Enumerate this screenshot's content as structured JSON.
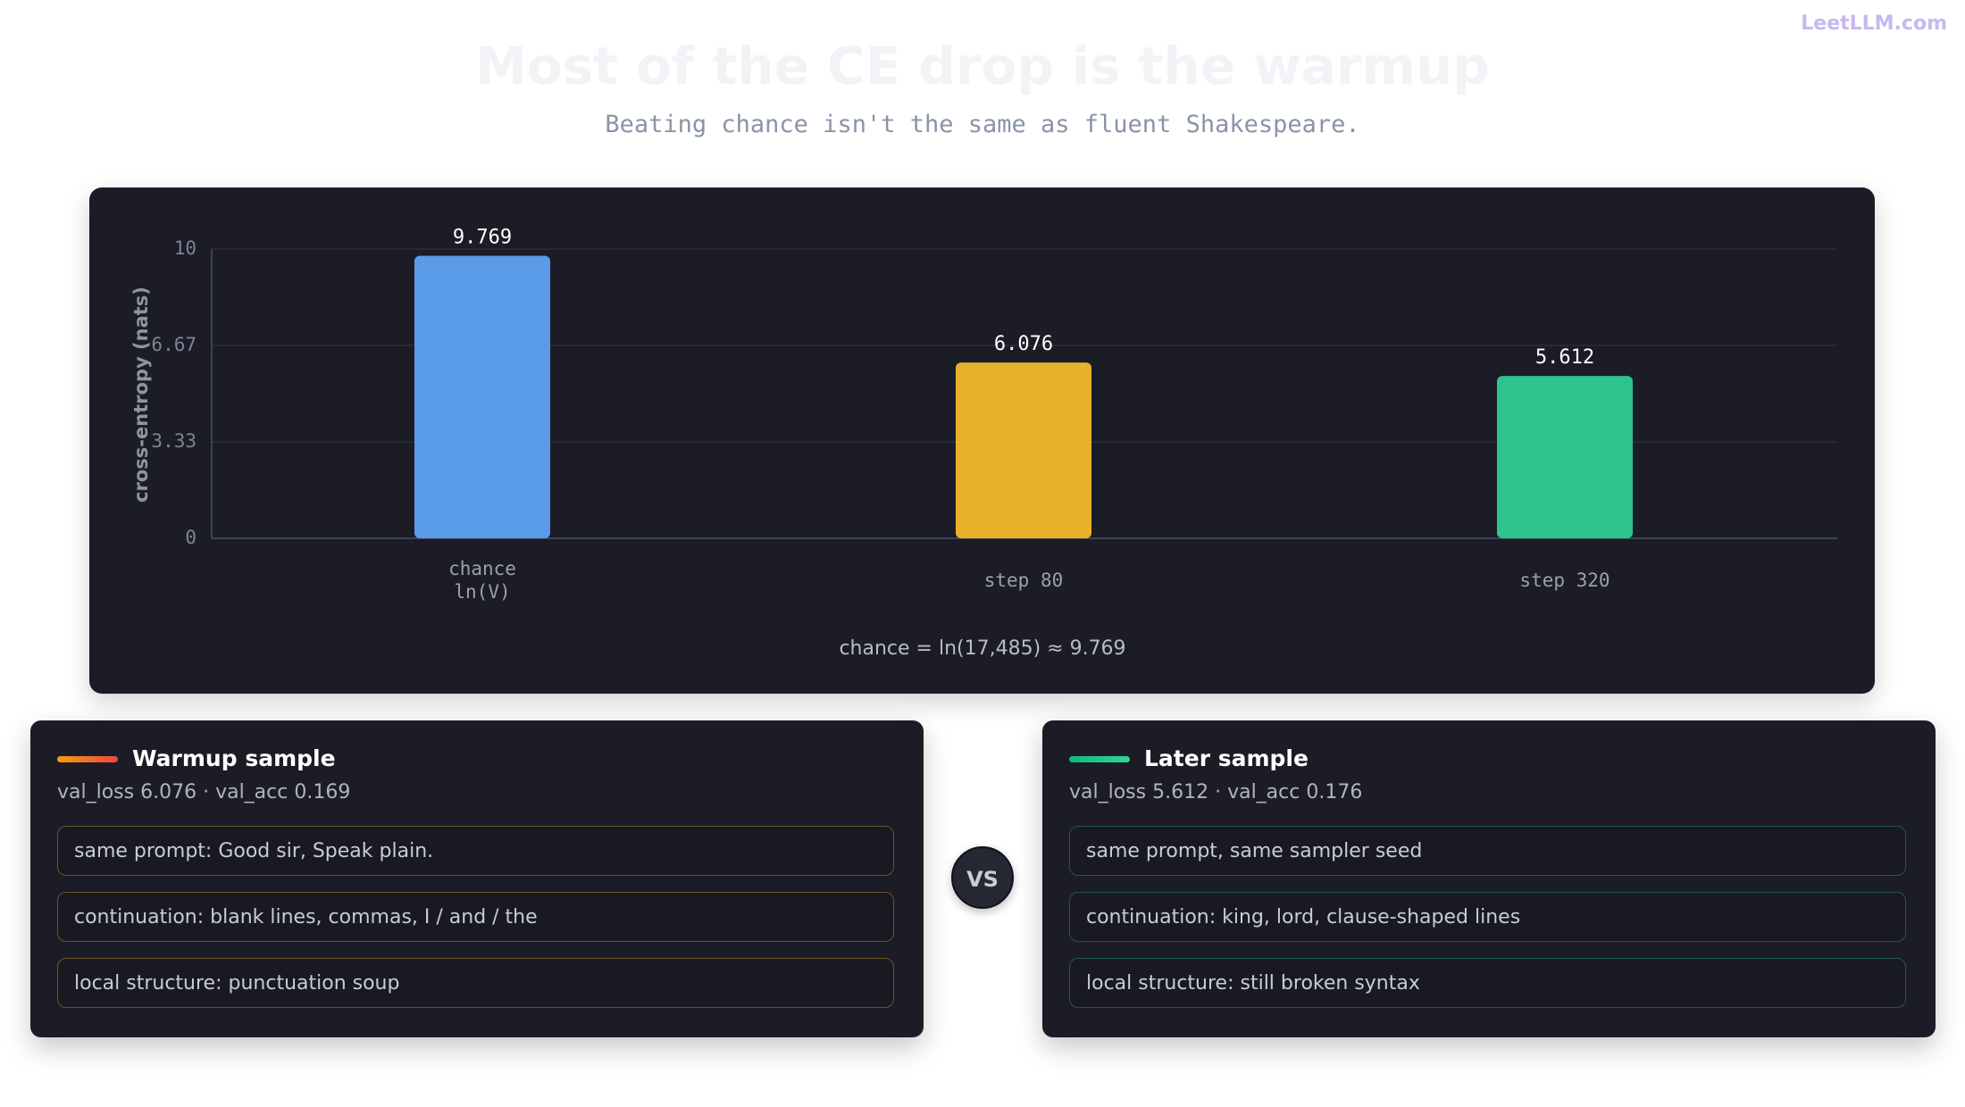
{
  "header": {
    "logo": "LeetLLM.com",
    "title": "Most of the CE drop is the warmup",
    "subtitle": "Beating chance isn't the same as fluent Shakespeare."
  },
  "chart_data": {
    "type": "bar",
    "y_label": "cross-entropy (nats)",
    "categories": [
      "chance\nln(V)",
      "step 80",
      "step 320"
    ],
    "values": [
      9.769,
      6.076,
      5.612
    ],
    "colors": [
      "#5a9be8",
      "#e6b22a",
      "#2fc48d"
    ],
    "ylim": [
      0,
      10
    ],
    "yticks": [
      0,
      3.33,
      6.67,
      10
    ],
    "grid": true,
    "annotation": "chance = ln(17,485) ≈ 9.769"
  },
  "vs": "VS",
  "cards": [
    {
      "title": "Warmup sample",
      "subtitle": "val_loss 6.076 · val_acc 0.169",
      "rows": [
        "same prompt: Good sir, Speak plain.",
        "continuation: blank lines, commas, I / and / the",
        "local structure: punctuation soup"
      ]
    },
    {
      "title": "Later sample",
      "subtitle": "val_loss 5.612 · val_acc 0.176",
      "rows": [
        "same prompt, same sampler seed",
        "continuation: king, lord, clause-shaped lines",
        "local structure: still broken syntax"
      ]
    }
  ]
}
